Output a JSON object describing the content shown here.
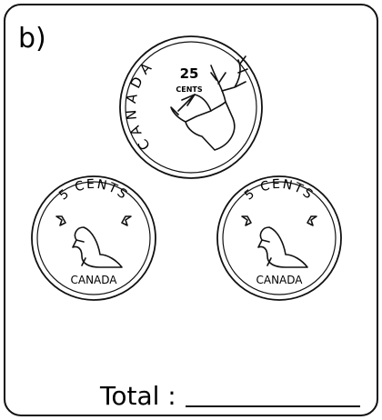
{
  "label": "b)",
  "coins": [
    {
      "country": "CANADA",
      "value": "25",
      "unit": "CENTS"
    },
    {
      "denomination": "5 CENTS",
      "country": "CANADA"
    },
    {
      "denomination": "5 CENTS",
      "country": "CANADA"
    }
  ],
  "total_label": "Total :"
}
